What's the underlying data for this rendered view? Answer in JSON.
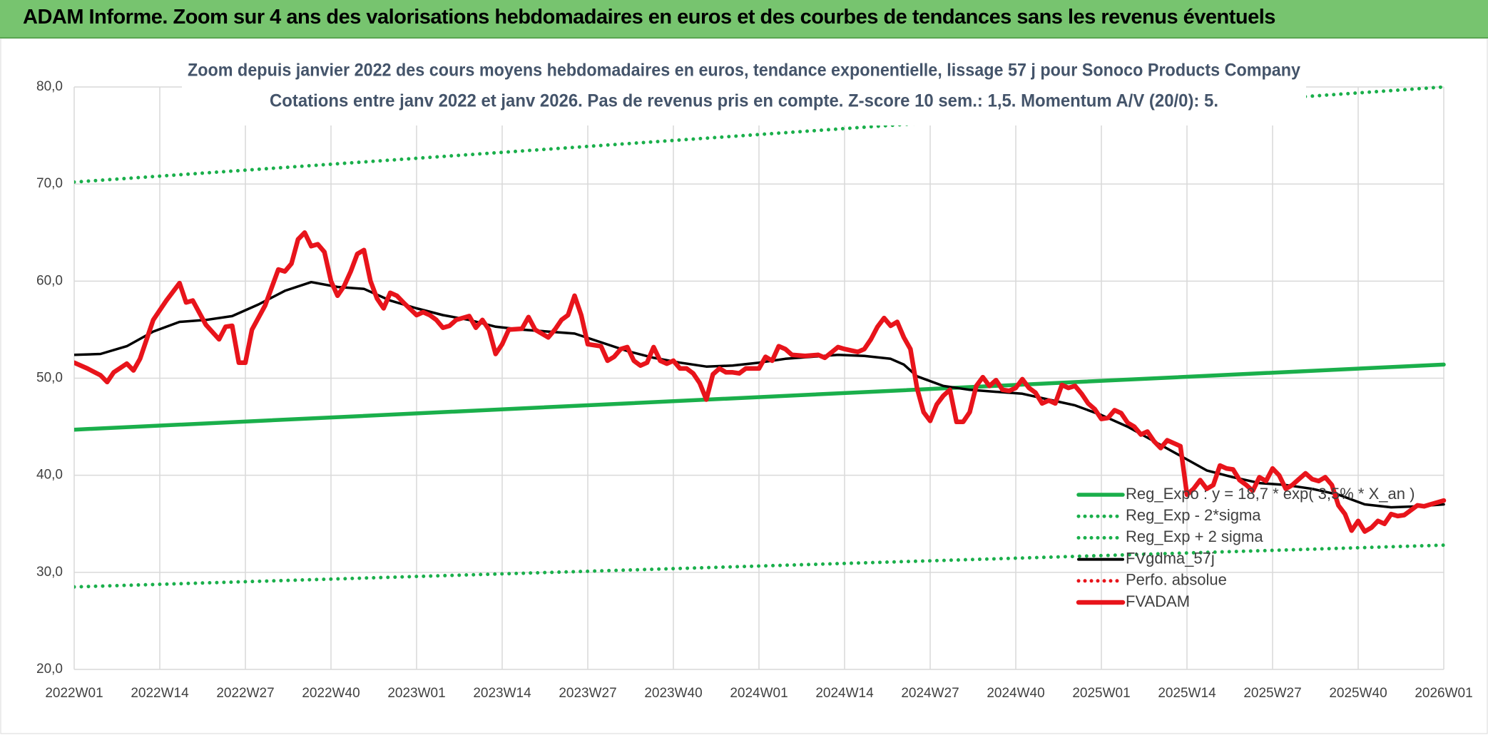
{
  "header": {
    "title": "ADAM Informe. Zoom sur 4 ans des valorisations hebdomadaires en euros et des courbes de tendances sans les revenus éventuels"
  },
  "chart_data": {
    "type": "line",
    "title": "Zoom depuis janvier 2022 des cours moyens hebdomadaires en euros, tendance exponentielle, lissage 57 j pour Sonoco Products Company",
    "subtitle": "Cotations entre janv 2022 et janv 2026. Pas de revenus pris en compte. Z-score 10 sem.: 1,5. Momentum A/V (20/0): 5.",
    "xlim": [
      0,
      208
    ],
    "xticks": [
      {
        "value": 0,
        "label": "2022W01"
      },
      {
        "value": 13,
        "label": "2022W14"
      },
      {
        "value": 26,
        "label": "2022W27"
      },
      {
        "value": 39,
        "label": "2022W40"
      },
      {
        "value": 52,
        "label": "2023W01"
      },
      {
        "value": 65,
        "label": "2023W14"
      },
      {
        "value": 78,
        "label": "2023W27"
      },
      {
        "value": 91,
        "label": "2023W40"
      },
      {
        "value": 104,
        "label": "2024W01"
      },
      {
        "value": 117,
        "label": "2024W14"
      },
      {
        "value": 130,
        "label": "2024W27"
      },
      {
        "value": 143,
        "label": "2024W40"
      },
      {
        "value": 156,
        "label": "2025W01"
      },
      {
        "value": 169,
        "label": "2025W14"
      },
      {
        "value": 182,
        "label": "2025W27"
      },
      {
        "value": 195,
        "label": "2025W40"
      },
      {
        "value": 208,
        "label": "2026W01"
      }
    ],
    "ylim": [
      20,
      80
    ],
    "yticks": [
      {
        "value": 20,
        "label": "20,0"
      },
      {
        "value": 30,
        "label": "30,0"
      },
      {
        "value": 40,
        "label": "40,0"
      },
      {
        "value": 50,
        "label": "50,0"
      },
      {
        "value": 60,
        "label": "60,0"
      },
      {
        "value": 70,
        "label": "70,0"
      },
      {
        "value": 80,
        "label": "80,0"
      }
    ],
    "grid": true,
    "legend": "lower right",
    "series": [
      {
        "name": "Reg_Expo : y = 18,7 * exp( 3,5% * X_an )",
        "color": "#1aaf4b",
        "style": "solid",
        "x": [
          0,
          208
        ],
        "values": [
          44.7,
          51.4
        ]
      },
      {
        "name": "Reg_Exp - 2*sigma",
        "color": "#1aaf4b",
        "style": "dotted",
        "x": [
          0,
          208
        ],
        "values": [
          28.5,
          32.8
        ]
      },
      {
        "name": "Reg_Exp + 2 sigma",
        "color": "#1aaf4b",
        "style": "dotted",
        "x": [
          0,
          208
        ],
        "values": [
          70.2,
          80.0
        ]
      },
      {
        "name": "FVgdma_57j",
        "color": "#000000",
        "style": "solid",
        "x": [
          0,
          4,
          8,
          12,
          16,
          20,
          24,
          28,
          32,
          36,
          40,
          44,
          48,
          52,
          56,
          60,
          64,
          68,
          72,
          76,
          80,
          84,
          88,
          92,
          96,
          100,
          104,
          108,
          112,
          116,
          120,
          124,
          126,
          128,
          132,
          136,
          140,
          144,
          148,
          152,
          156,
          160,
          164,
          168,
          172,
          176,
          180,
          184,
          188,
          192,
          196,
          200,
          204,
          208
        ],
        "values": [
          52.4,
          52.5,
          53.3,
          54.8,
          55.8,
          56.0,
          56.4,
          57.6,
          59.0,
          59.9,
          59.4,
          59.2,
          58.0,
          57.2,
          56.5,
          56.0,
          55.3,
          55.0,
          54.8,
          54.6,
          53.7,
          52.8,
          52.1,
          51.6,
          51.2,
          51.3,
          51.6,
          52.0,
          52.2,
          52.4,
          52.3,
          52.0,
          51.4,
          50.2,
          49.2,
          48.8,
          48.6,
          48.4,
          47.8,
          47.2,
          46.2,
          45.0,
          43.5,
          42.0,
          40.5,
          39.8,
          39.2,
          39.0,
          38.6,
          38.0,
          37.0,
          36.7,
          36.8,
          37.0
        ]
      },
      {
        "name": "Perfo. absolue",
        "color": "#e8141b",
        "style": "dotted",
        "x": [],
        "values": []
      },
      {
        "name": "FVADAM",
        "color": "#e8141b",
        "style": "thick",
        "x": [
          0,
          2,
          4,
          5,
          6,
          8,
          9,
          10,
          12,
          14,
          16,
          17,
          18,
          20,
          22,
          23,
          24,
          25,
          26,
          27,
          29,
          31,
          32,
          33,
          34,
          35,
          36,
          37,
          38,
          39,
          40,
          41,
          42,
          43,
          44,
          45,
          46,
          47,
          48,
          49,
          50,
          52,
          53,
          54,
          55,
          56,
          57,
          58,
          60,
          61,
          62,
          63,
          64,
          65,
          66,
          68,
          69,
          70,
          72,
          73,
          74,
          75,
          76,
          77,
          78,
          80,
          81,
          82,
          83,
          84,
          85,
          86,
          87,
          88,
          89,
          90,
          91,
          92,
          93,
          94,
          95,
          96,
          97,
          98,
          99,
          100,
          101,
          102,
          104,
          105,
          106,
          107,
          108,
          109,
          111,
          113,
          114,
          116,
          117,
          119,
          120,
          121,
          122,
          123,
          124,
          125,
          126,
          127,
          128,
          129,
          130,
          131,
          132,
          133,
          134,
          135,
          136,
          137,
          138,
          139,
          140,
          141,
          142,
          143,
          144,
          145,
          146,
          147,
          148,
          149,
          150,
          151,
          152,
          153,
          154,
          155,
          156,
          157,
          158,
          159,
          160,
          161,
          162,
          163,
          164,
          165,
          166,
          167,
          168,
          169,
          170,
          171,
          172,
          173,
          174,
          175,
          176,
          177,
          178,
          179,
          180,
          181,
          182,
          183,
          184,
          185,
          186,
          187,
          188,
          189,
          190,
          191,
          192,
          193,
          194,
          195,
          196,
          197,
          198,
          199,
          200,
          201,
          202,
          204,
          205,
          206,
          208
        ],
        "values": [
          51.6,
          51.0,
          50.3,
          49.6,
          50.6,
          51.5,
          50.8,
          52.0,
          56.0,
          58.0,
          59.8,
          57.8,
          58.0,
          55.5,
          54.0,
          55.3,
          55.4,
          51.6,
          51.6,
          55.0,
          57.5,
          61.2,
          61.0,
          61.8,
          64.3,
          65.0,
          63.6,
          63.8,
          63.0,
          60.0,
          58.5,
          59.5,
          61.0,
          62.8,
          63.2,
          60.0,
          58.2,
          57.2,
          58.8,
          58.5,
          57.8,
          56.5,
          56.8,
          56.5,
          56.0,
          55.2,
          55.4,
          56.0,
          56.4,
          55.2,
          56.0,
          55.0,
          52.5,
          53.5,
          55.0,
          55.1,
          56.3,
          55.0,
          54.2,
          55.0,
          56.0,
          56.5,
          58.5,
          56.5,
          53.5,
          53.3,
          51.8,
          52.2,
          53.0,
          53.2,
          51.8,
          51.3,
          51.6,
          53.2,
          51.8,
          51.5,
          51.8,
          51.0,
          51.0,
          50.5,
          49.5,
          47.8,
          50.4,
          51.0,
          50.6,
          50.6,
          50.5,
          51.0,
          51.0,
          52.2,
          51.8,
          53.3,
          53.0,
          52.4,
          52.3,
          52.4,
          52.1,
          53.2,
          53.0,
          52.7,
          53.0,
          54.0,
          55.3,
          56.2,
          55.4,
          55.8,
          54.2,
          53.0,
          49.0,
          46.5,
          45.6,
          47.3,
          48.2,
          48.8,
          45.5,
          45.5,
          46.5,
          49.2,
          50.1,
          49.2,
          49.8,
          48.8,
          48.7,
          49.0,
          49.9,
          49.0,
          48.5,
          47.4,
          47.7,
          47.4,
          49.3,
          49.0,
          49.2,
          48.4,
          47.4,
          46.8,
          45.8,
          45.9,
          46.7,
          46.4,
          45.4,
          45.0,
          44.2,
          44.5,
          43.5,
          42.8,
          43.6,
          43.3,
          43.0,
          38.0,
          38.6,
          39.5,
          38.6,
          39.0,
          41.0,
          40.7,
          40.6,
          39.5,
          39.0,
          38.4,
          39.8,
          39.4,
          40.7,
          40.0,
          38.6,
          39.0,
          39.6,
          40.2,
          39.6,
          39.4,
          39.8,
          39.0,
          36.9,
          36.0,
          34.3,
          35.3,
          34.2,
          34.6,
          35.3,
          35.0,
          36.0,
          35.8,
          35.9,
          36.9,
          36.8,
          37.0,
          37.4
        ]
      }
    ]
  }
}
